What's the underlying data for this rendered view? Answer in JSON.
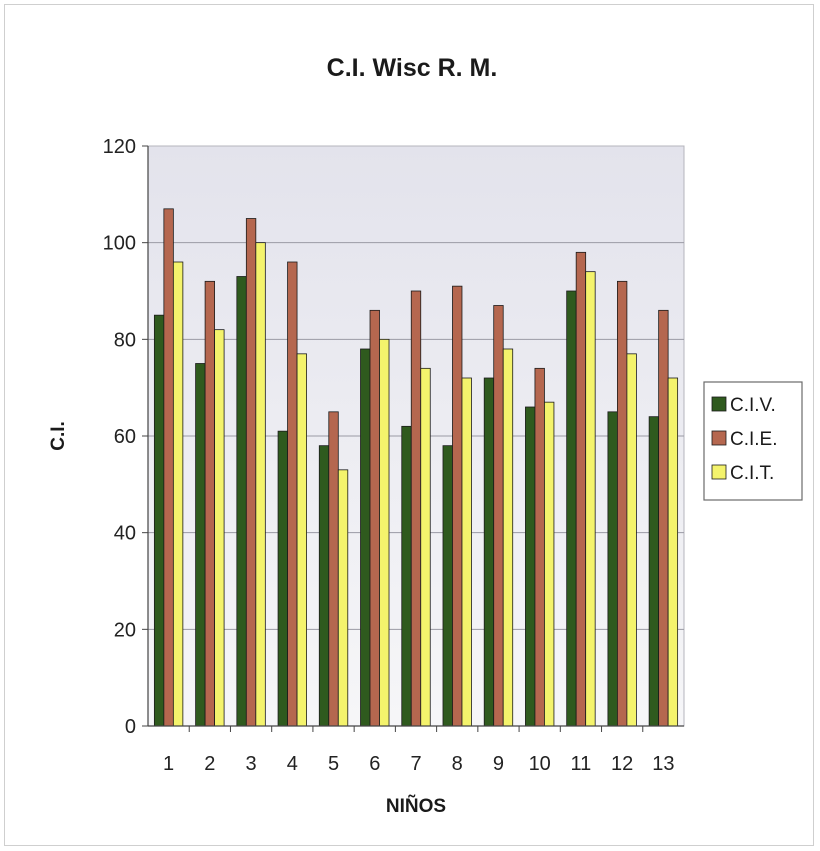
{
  "chart_data": {
    "type": "bar",
    "title": "C.I. Wisc R. M.",
    "xlabel": "NIÑOS",
    "ylabel": "C.I.",
    "ylim": [
      0,
      120
    ],
    "yticks": [
      "0",
      "20",
      "40",
      "60",
      "80",
      "100",
      "120"
    ],
    "categories": [
      "1",
      "2",
      "3",
      "4",
      "5",
      "6",
      "7",
      "8",
      "9",
      "10",
      "11",
      "12",
      "13"
    ],
    "series": [
      {
        "name": "C.I.V.",
        "color": "#2f5a1e",
        "values": [
          85,
          75,
          93,
          61,
          58,
          78,
          62,
          58,
          72,
          66,
          90,
          65,
          64
        ]
      },
      {
        "name": "C.I.E.",
        "color": "#b5674f",
        "values": [
          107,
          92,
          105,
          96,
          65,
          86,
          90,
          91,
          87,
          74,
          98,
          92,
          86
        ]
      },
      {
        "name": "C.I.T.",
        "color": "#f4f36c",
        "values": [
          96,
          82,
          100,
          77,
          53,
          80,
          74,
          72,
          78,
          67,
          94,
          77,
          72
        ]
      }
    ],
    "grid": true,
    "legend": "right"
  }
}
